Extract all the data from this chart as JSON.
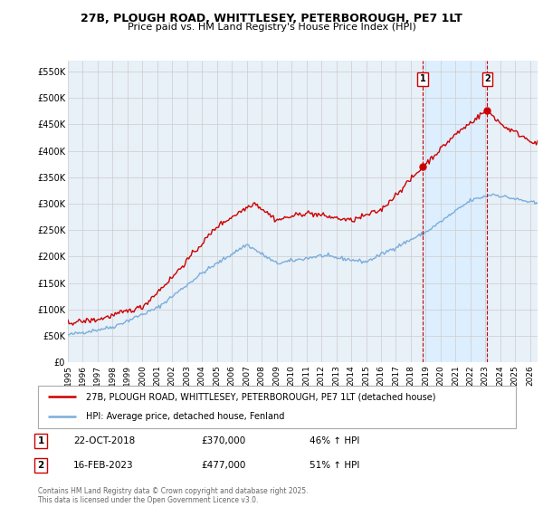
{
  "title_line1": "27B, PLOUGH ROAD, WHITTLESEY, PETERBOROUGH, PE7 1LT",
  "title_line2": "Price paid vs. HM Land Registry's House Price Index (HPI)",
  "ylabel_ticks": [
    "£0",
    "£50K",
    "£100K",
    "£150K",
    "£200K",
    "£250K",
    "£300K",
    "£350K",
    "£400K",
    "£450K",
    "£500K",
    "£550K"
  ],
  "ytick_vals": [
    0,
    50000,
    100000,
    150000,
    200000,
    250000,
    300000,
    350000,
    400000,
    450000,
    500000,
    550000
  ],
  "ylim": [
    0,
    570000
  ],
  "xlim_start": 1995.0,
  "xlim_end": 2026.5,
  "xticks": [
    1995,
    1996,
    1997,
    1998,
    1999,
    2000,
    2001,
    2002,
    2003,
    2004,
    2005,
    2006,
    2007,
    2008,
    2009,
    2010,
    2011,
    2012,
    2013,
    2014,
    2015,
    2016,
    2017,
    2018,
    2019,
    2020,
    2021,
    2022,
    2023,
    2024,
    2025,
    2026
  ],
  "red_color": "#cc0000",
  "blue_color": "#7aaddb",
  "shade_color": "#ddeeff",
  "marker1_x": 2018.81,
  "marker1_y": 370000,
  "marker2_x": 2023.12,
  "marker2_y": 477000,
  "vline1_x": 2018.81,
  "vline2_x": 2023.12,
  "legend_line1": "27B, PLOUGH ROAD, WHITTLESEY, PETERBOROUGH, PE7 1LT (detached house)",
  "legend_line2": "HPI: Average price, detached house, Fenland",
  "table_row1_num": "1",
  "table_row1_date": "22-OCT-2018",
  "table_row1_price": "£370,000",
  "table_row1_hpi": "46% ↑ HPI",
  "table_row2_num": "2",
  "table_row2_date": "16-FEB-2023",
  "table_row2_price": "£477,000",
  "table_row2_hpi": "51% ↑ HPI",
  "footnote": "Contains HM Land Registry data © Crown copyright and database right 2025.\nThis data is licensed under the Open Government Licence v3.0.",
  "bg_color": "#ffffff",
  "grid_color": "#cccccc",
  "plot_bg_color": "#e8f0f8"
}
